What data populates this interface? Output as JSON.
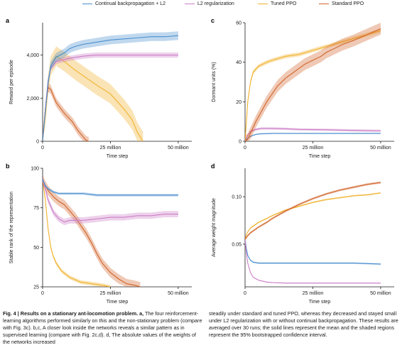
{
  "legend": [
    {
      "label": "Continual backpropagation + L2",
      "color": "#4a8fcf"
    },
    {
      "label": "L2 regularization",
      "color": "#cc7ec7"
    },
    {
      "label": "Tuned PPO",
      "color": "#f0b22e"
    },
    {
      "label": "Standard PPO",
      "color": "#d1642a"
    }
  ],
  "caption": {
    "bold": "Fig. 4 | Results on a stationary ant-locomotion problem. a,",
    "left": "The four reinforcement-learning algorithms performed similarly on this and the non-stationary problem (compare with Fig. 3c). b,c, A closer look inside the networks reveals a similar pattern as in supervised learning (compare with Fig. 2c,d). d, The absolute values of the weights of the networks increased",
    "right": "steadily under standard and tuned PPO, whereas they decreased and stayed small under L2 regularization with or without continual backpropagation. These results are averaged over 30 runs; the solid lines represent the mean and the shaded regions represent the 95% bootstrapped confidence interval."
  },
  "chart_data": [
    {
      "type": "line",
      "panel": "a",
      "xlabel": "Time step",
      "ylabel": "Reward per episode",
      "xlim": [
        0,
        55
      ],
      "ylim": [
        0,
        5500
      ],
      "xticks": [
        0,
        25,
        50
      ],
      "xtick_labels": [
        "0",
        "25 million",
        "50 million"
      ],
      "yticks": [
        0,
        2000,
        4000
      ],
      "ytick_labels": [
        "0",
        "2,000",
        "4,000"
      ],
      "series": [
        {
          "name": "Tuned PPO",
          "color": "#f0b22e",
          "x": [
            0,
            1,
            2,
            3,
            5,
            8,
            12,
            16,
            20,
            25,
            30,
            33,
            35,
            37
          ],
          "y": [
            0,
            1200,
            2600,
            3500,
            3950,
            3700,
            3300,
            2950,
            2600,
            2200,
            1500,
            1000,
            400,
            0
          ],
          "band": 450
        },
        {
          "name": "Standard PPO",
          "color": "#d1642a",
          "x": [
            0,
            1,
            2,
            3,
            5,
            8,
            11,
            13,
            15,
            16,
            17
          ],
          "y": [
            0,
            1500,
            2500,
            2400,
            1800,
            1300,
            900,
            500,
            200,
            50,
            0
          ],
          "band": 200
        },
        {
          "name": "L2 regularization",
          "color": "#cc7ec7",
          "x": [
            0,
            1,
            2,
            3,
            5,
            8,
            10,
            15,
            20,
            25,
            30,
            35,
            40,
            45,
            50
          ],
          "y": [
            0,
            1500,
            2800,
            3400,
            3700,
            3800,
            3850,
            3950,
            4000,
            4000,
            4000,
            4000,
            4000,
            4000,
            4000
          ],
          "band": 120
        },
        {
          "name": "Continual backpropagation + L2",
          "color": "#4a8fcf",
          "x": [
            0,
            1,
            2,
            3,
            5,
            8,
            10,
            12,
            15,
            20,
            25,
            30,
            35,
            40,
            45,
            50
          ],
          "y": [
            0,
            1400,
            2700,
            3500,
            3900,
            4100,
            4300,
            4400,
            4500,
            4600,
            4700,
            4750,
            4800,
            4850,
            4850,
            4900
          ],
          "band": 200
        }
      ]
    },
    {
      "type": "line",
      "panel": "b",
      "xlabel": "Time step",
      "ylabel": "Stable rank of the representation",
      "xlim": [
        0,
        55
      ],
      "ylim": [
        25,
        100
      ],
      "xticks": [
        0,
        25,
        50
      ],
      "xtick_labels": [
        "0",
        "25 million",
        "50 million"
      ],
      "yticks": [
        25,
        50,
        75,
        100
      ],
      "ytick_labels": [
        "25",
        "50",
        "75",
        "100"
      ],
      "series": [
        {
          "name": "Tuned PPO",
          "color": "#f0b22e",
          "x": [
            0,
            1,
            2,
            3,
            4,
            5,
            7,
            10,
            14,
            18,
            22,
            25
          ],
          "y": [
            93,
            80,
            62,
            50,
            44,
            40,
            35,
            31,
            28,
            27,
            26,
            25
          ],
          "band": 1.2
        },
        {
          "name": "Standard PPO",
          "color": "#d1642a",
          "x": [
            0,
            1,
            2,
            4,
            6,
            8,
            10,
            12,
            14,
            16,
            18,
            20,
            22,
            25,
            28,
            31,
            34,
            36
          ],
          "y": [
            93,
            89,
            86,
            82,
            79,
            77,
            73,
            69,
            64,
            59,
            53,
            46,
            40,
            34,
            30,
            27,
            26,
            25
          ],
          "band": 3
        },
        {
          "name": "L2 regularization",
          "color": "#cc7ec7",
          "x": [
            0,
            1,
            2,
            4,
            6,
            8,
            10,
            15,
            20,
            25,
            30,
            35,
            40,
            45,
            50
          ],
          "y": [
            93,
            87,
            80,
            72,
            68,
            66,
            67,
            67,
            68,
            69,
            69,
            70,
            70,
            71,
            71
          ],
          "band": 2
        },
        {
          "name": "Continual backpropagation + L2",
          "color": "#4a8fcf",
          "x": [
            0,
            1,
            2,
            4,
            6,
            10,
            15,
            20,
            25,
            30,
            35,
            40,
            45,
            50
          ],
          "y": [
            93,
            89,
            87,
            85,
            84,
            84,
            84,
            83,
            83,
            83,
            83,
            83,
            83,
            83
          ],
          "band": 0.8
        }
      ]
    },
    {
      "type": "line",
      "panel": "c",
      "xlabel": "Time step",
      "ylabel": "Dormant units (%)",
      "xlim": [
        0,
        55
      ],
      "ylim": [
        0,
        60
      ],
      "xticks": [
        0,
        25,
        50
      ],
      "xtick_labels": [
        "0",
        "25 million",
        "50 million"
      ],
      "yticks": [
        0,
        20,
        40,
        60
      ],
      "ytick_labels": [
        "0",
        "20",
        "40",
        "60"
      ],
      "series": [
        {
          "name": "Continual backpropagation + L2",
          "color": "#4a8fcf",
          "x": [
            0,
            1,
            2,
            4,
            6,
            10,
            15,
            20,
            30,
            40,
            50
          ],
          "y": [
            0,
            1.5,
            2.5,
            3.5,
            3.8,
            4,
            4,
            4,
            4,
            4,
            4
          ],
          "band": 0.3
        },
        {
          "name": "L2 regularization",
          "color": "#cc7ec7",
          "x": [
            0,
            1,
            2,
            4,
            6,
            10,
            15,
            20,
            30,
            40,
            50
          ],
          "y": [
            0,
            3,
            5,
            6,
            6.5,
            6.5,
            6.3,
            6,
            5.8,
            5.5,
            5.3
          ],
          "band": 0.6
        },
        {
          "name": "Tuned PPO",
          "color": "#f0b22e",
          "x": [
            0,
            1,
            2,
            3,
            5,
            8,
            10,
            15,
            20,
            25,
            30,
            35,
            40,
            45,
            50
          ],
          "y": [
            0,
            20,
            30,
            35,
            38,
            40,
            41,
            43,
            44,
            46,
            48,
            50,
            52,
            54,
            56
          ],
          "band": 1
        },
        {
          "name": "Standard PPO",
          "color": "#d1642a",
          "x": [
            0,
            1,
            2,
            4,
            6,
            8,
            10,
            12,
            15,
            18,
            20,
            22,
            25,
            28,
            30,
            33,
            36,
            40,
            45,
            50
          ],
          "y": [
            0,
            1,
            4,
            10,
            15,
            20,
            24,
            28,
            32,
            35,
            37,
            39,
            41,
            43,
            45,
            47,
            49,
            51,
            54,
            57
          ],
          "band": 3
        }
      ]
    },
    {
      "type": "line",
      "panel": "d",
      "xlabel": "Time step",
      "ylabel": "Average weight magnitude",
      "xlim": [
        0,
        55
      ],
      "ylim": [
        0.005,
        0.13
      ],
      "xticks": [
        0,
        25,
        50
      ],
      "xtick_labels": [
        "0",
        "25 million",
        "50 million"
      ],
      "yticks": [
        0.05,
        0.1
      ],
      "ytick_labels": [
        "0.05",
        "0.10"
      ],
      "series": [
        {
          "name": "Continual backpropagation + L2",
          "color": "#4a8fcf",
          "x": [
            0,
            0.5,
            1,
            2,
            3,
            5,
            8,
            10,
            15,
            20,
            30,
            40,
            50
          ],
          "y": [
            0.055,
            0.045,
            0.038,
            0.033,
            0.031,
            0.03,
            0.03,
            0.03,
            0.03,
            0.03,
            0.03,
            0.03,
            0.029
          ],
          "band": 0.0008
        },
        {
          "name": "L2 regularization",
          "color": "#cc7ec7",
          "x": [
            0,
            0.5,
            1,
            2,
            3,
            5,
            8,
            10,
            15,
            20,
            30,
            40,
            50
          ],
          "y": [
            0.055,
            0.04,
            0.03,
            0.02,
            0.015,
            0.012,
            0.01,
            0.0095,
            0.009,
            0.009,
            0.009,
            0.009,
            0.009
          ],
          "band": 0.0005
        },
        {
          "name": "Tuned PPO",
          "color": "#f0b22e",
          "x": [
            0,
            0.5,
            1,
            2,
            3,
            5,
            8,
            10,
            15,
            20,
            25,
            30,
            35,
            40,
            45,
            50
          ],
          "y": [
            0.055,
            0.06,
            0.063,
            0.067,
            0.069,
            0.073,
            0.077,
            0.08,
            0.086,
            0.09,
            0.094,
            0.097,
            0.099,
            0.101,
            0.102,
            0.104
          ],
          "band": 0.0008
        },
        {
          "name": "Standard PPO",
          "color": "#d1642a",
          "x": [
            0,
            0.5,
            1,
            2,
            3,
            5,
            8,
            10,
            15,
            20,
            25,
            30,
            35,
            40,
            45,
            50
          ],
          "y": [
            0.055,
            0.057,
            0.059,
            0.062,
            0.064,
            0.068,
            0.073,
            0.077,
            0.085,
            0.092,
            0.098,
            0.103,
            0.107,
            0.11,
            0.113,
            0.115
          ],
          "band": 0.0012
        }
      ]
    }
  ]
}
